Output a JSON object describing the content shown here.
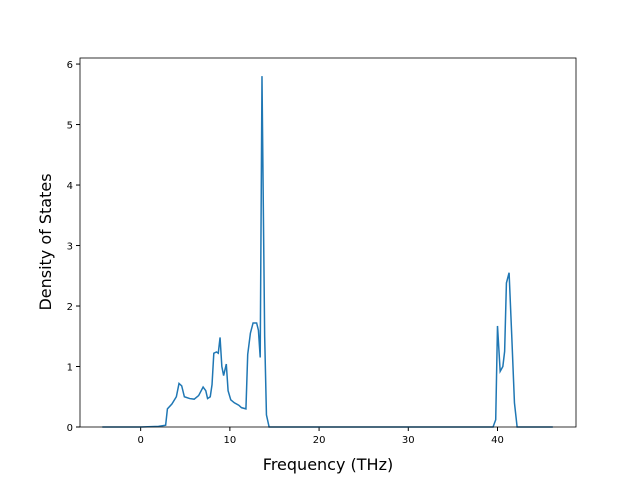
{
  "chart_data": {
    "type": "line",
    "x_label": "Frequency (THz)",
    "y_label": "Density of States",
    "x": [
      -4.3,
      0,
      2,
      2.8,
      3.0,
      3.5,
      4.0,
      4.3,
      4.6,
      4.9,
      5.5,
      6.0,
      6.5,
      7.0,
      7.3,
      7.5,
      7.8,
      8.0,
      8.2,
      8.5,
      8.7,
      8.9,
      9.1,
      9.3,
      9.6,
      9.8,
      10.1,
      10.5,
      11.0,
      11.3,
      11.8,
      12.0,
      12.3,
      12.6,
      13.0,
      13.2,
      13.4,
      13.6,
      13.9,
      14.1,
      14.4,
      39.5,
      39.8,
      40.0,
      40.3,
      40.6,
      40.8,
      41.0,
      41.3,
      41.6,
      41.9,
      42.2,
      46.2
    ],
    "series": [
      {
        "name": "DOS",
        "color": "#1f77b4",
        "values": [
          0,
          0,
          0.01,
          0.03,
          0.3,
          0.38,
          0.5,
          0.72,
          0.68,
          0.5,
          0.47,
          0.46,
          0.52,
          0.66,
          0.6,
          0.47,
          0.5,
          0.7,
          1.22,
          1.24,
          1.22,
          1.48,
          1.0,
          0.85,
          1.04,
          0.6,
          0.45,
          0.4,
          0.36,
          0.32,
          0.3,
          1.2,
          1.55,
          1.72,
          1.72,
          1.6,
          1.15,
          5.8,
          1.5,
          0.2,
          0,
          0,
          0.12,
          1.67,
          0.92,
          1.0,
          1.25,
          2.38,
          2.55,
          1.5,
          0.4,
          0,
          0
        ]
      }
    ],
    "xlim": [
      -6.8,
      48.8
    ],
    "xticks": [
      0,
      10,
      20,
      30,
      40
    ],
    "ylim": [
      0,
      6.1
    ],
    "yticks": [
      0,
      1,
      2,
      3,
      4,
      5,
      6
    ]
  }
}
